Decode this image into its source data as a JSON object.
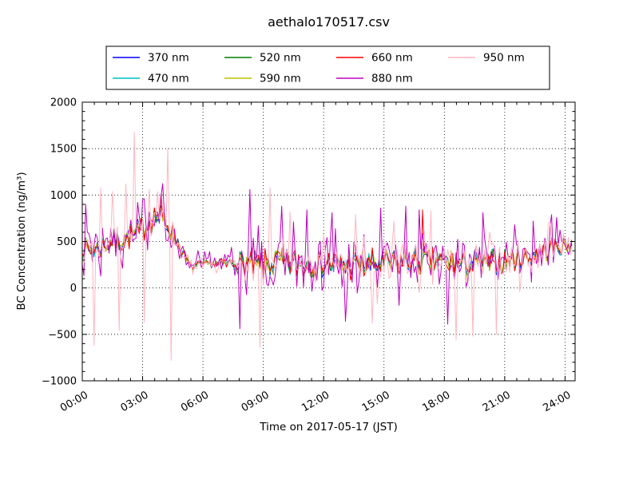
{
  "window": {
    "title": "aethalo170517.csv"
  },
  "chart_data": {
    "type": "line",
    "title": "aethalo170517.csv",
    "xlabel": "Time on 2017-05-17 (JST)",
    "ylabel": "BC Concentration (ng/m³)",
    "xlim": [
      0,
      24.5
    ],
    "ylim": [
      -1000,
      2000
    ],
    "grid": {
      "style": "dotted",
      "color": "#000000",
      "on": true
    },
    "xticks": [
      {
        "value": 0,
        "label": "00:00"
      },
      {
        "value": 3,
        "label": "03:00"
      },
      {
        "value": 6,
        "label": "06:00"
      },
      {
        "value": 9,
        "label": "09:00"
      },
      {
        "value": 12,
        "label": "12:00"
      },
      {
        "value": 15,
        "label": "15:00"
      },
      {
        "value": 18,
        "label": "18:00"
      },
      {
        "value": 21,
        "label": "21:00"
      },
      {
        "value": 24,
        "label": "24:00"
      }
    ],
    "yticks": [
      {
        "value": 2000,
        "label": "2000"
      },
      {
        "value": 1500,
        "label": "1500"
      },
      {
        "value": 1000,
        "label": "1000"
      },
      {
        "value": 500,
        "label": "500"
      },
      {
        "value": 0,
        "label": "0"
      },
      {
        "value": -500,
        "label": "−500"
      },
      {
        "value": -1000,
        "label": "−1000"
      }
    ],
    "x_minor_step": 0.6,
    "y_minor_step": 100,
    "legend": {
      "position": "top-center",
      "ncol": 4,
      "order": "column-major"
    },
    "series": [
      {
        "name": "370 nm",
        "color": "#0000ff",
        "noise_factor": 0.3,
        "burst_prob": 0.0,
        "burst_scale": 1.0
      },
      {
        "name": "470 nm",
        "color": "#00bfbf",
        "noise_factor": 0.33,
        "burst_prob": 0.0,
        "burst_scale": 1.0
      },
      {
        "name": "520 nm",
        "color": "#007f00",
        "noise_factor": 0.3,
        "burst_prob": 0.0,
        "burst_scale": 1.0
      },
      {
        "name": "590 nm",
        "color": "#bfbf00",
        "noise_factor": 0.34,
        "burst_prob": 0.05,
        "burst_scale": 2.0
      },
      {
        "name": "660 nm",
        "color": "#ff0000",
        "noise_factor": 0.4,
        "burst_prob": 0.06,
        "burst_scale": 2.0
      },
      {
        "name": "880 nm",
        "color": "#bf00bf",
        "noise_factor": 1.25,
        "burst_prob": 0.3,
        "burst_scale": 2.1
      },
      {
        "name": "950 nm",
        "color": "#ffb6c1",
        "noise_factor": 0.85,
        "burst_prob": 0.1,
        "burst_scale": 3.2
      }
    ],
    "sample_step_hours": 0.0833333,
    "x_start": 0,
    "x_end": 24.33,
    "seed": 7,
    "common_noise_factor": 0.85,
    "baseline": [
      [
        0,
        430
      ],
      [
        0.5,
        415
      ],
      [
        1,
        450
      ],
      [
        1.5,
        495
      ],
      [
        2,
        515
      ],
      [
        2.5,
        565
      ],
      [
        3,
        635
      ],
      [
        3.5,
        755
      ],
      [
        3.8,
        775
      ],
      [
        4.2,
        695
      ],
      [
        4.6,
        545
      ],
      [
        5,
        370
      ],
      [
        5.4,
        215
      ],
      [
        5.8,
        235
      ],
      [
        6.3,
        265
      ],
      [
        7,
        250
      ],
      [
        7.5,
        275
      ],
      [
        8,
        255
      ],
      [
        9,
        250
      ],
      [
        10,
        268
      ],
      [
        11,
        252
      ],
      [
        12,
        268
      ],
      [
        13,
        252
      ],
      [
        14,
        248
      ],
      [
        15,
        262
      ],
      [
        16,
        282
      ],
      [
        17,
        298
      ],
      [
        18,
        272
      ],
      [
        19,
        262
      ],
      [
        20,
        258
      ],
      [
        21,
        292
      ],
      [
        22,
        328
      ],
      [
        23,
        398
      ],
      [
        23.6,
        448
      ],
      [
        24.33,
        478
      ]
    ],
    "noise_envelope": [
      [
        0,
        115
      ],
      [
        1,
        120
      ],
      [
        2,
        125
      ],
      [
        3,
        135
      ],
      [
        4,
        140
      ],
      [
        4.8,
        90
      ],
      [
        5.5,
        55
      ],
      [
        6.5,
        45
      ],
      [
        7.3,
        70
      ],
      [
        8,
        140
      ],
      [
        9,
        155
      ],
      [
        12,
        150
      ],
      [
        15,
        150
      ],
      [
        18,
        150
      ],
      [
        20,
        140
      ],
      [
        22,
        120
      ],
      [
        23,
        115
      ],
      [
        24.33,
        100
      ]
    ],
    "spikes": [
      [
        "950 nm",
        0.6,
        -620
      ],
      [
        "950 nm",
        0.9,
        1080
      ],
      [
        "950 nm",
        1.5,
        1040
      ],
      [
        "950 nm",
        1.8,
        -460
      ],
      [
        "950 nm",
        2.2,
        1120
      ],
      [
        "950 nm",
        2.6,
        1680
      ],
      [
        "950 nm",
        3.05,
        -370
      ],
      [
        "950 nm",
        3.3,
        1060
      ],
      [
        "950 nm",
        4.25,
        1500
      ],
      [
        "950 nm",
        4.45,
        -780
      ],
      [
        "950 nm",
        8.85,
        -640
      ],
      [
        "950 nm",
        9.3,
        1080
      ],
      [
        "950 nm",
        10.3,
        820
      ],
      [
        "950 nm",
        13.6,
        790
      ],
      [
        "950 nm",
        14.4,
        -380
      ],
      [
        "950 nm",
        15.5,
        720
      ],
      [
        "950 nm",
        17.35,
        830
      ],
      [
        "950 nm",
        18.6,
        -560
      ],
      [
        "950 nm",
        19.45,
        -520
      ],
      [
        "950 nm",
        20.6,
        -500
      ],
      [
        "950 nm",
        23.2,
        700
      ],
      [
        "880 nm",
        0.15,
        900
      ],
      [
        "880 nm",
        2.75,
        920
      ],
      [
        "880 nm",
        3.1,
        960
      ],
      [
        "880 nm",
        7.8,
        -440
      ],
      [
        "880 nm",
        8.3,
        1060
      ],
      [
        "880 nm",
        9.9,
        880
      ],
      [
        "880 nm",
        11.2,
        840
      ],
      [
        "880 nm",
        12.4,
        810
      ],
      [
        "880 nm",
        13.1,
        -360
      ],
      [
        "880 nm",
        14.8,
        860
      ],
      [
        "880 nm",
        16.1,
        880
      ],
      [
        "880 nm",
        16.75,
        840
      ],
      [
        "880 nm",
        18.2,
        -390
      ],
      [
        "880 nm",
        19.9,
        810
      ],
      [
        "880 nm",
        21.5,
        680
      ],
      [
        "880 nm",
        22.4,
        720
      ],
      [
        "880 nm",
        23.6,
        760
      ],
      [
        "660 nm",
        3.9,
        1010
      ],
      [
        "660 nm",
        16.9,
        840
      ]
    ]
  }
}
